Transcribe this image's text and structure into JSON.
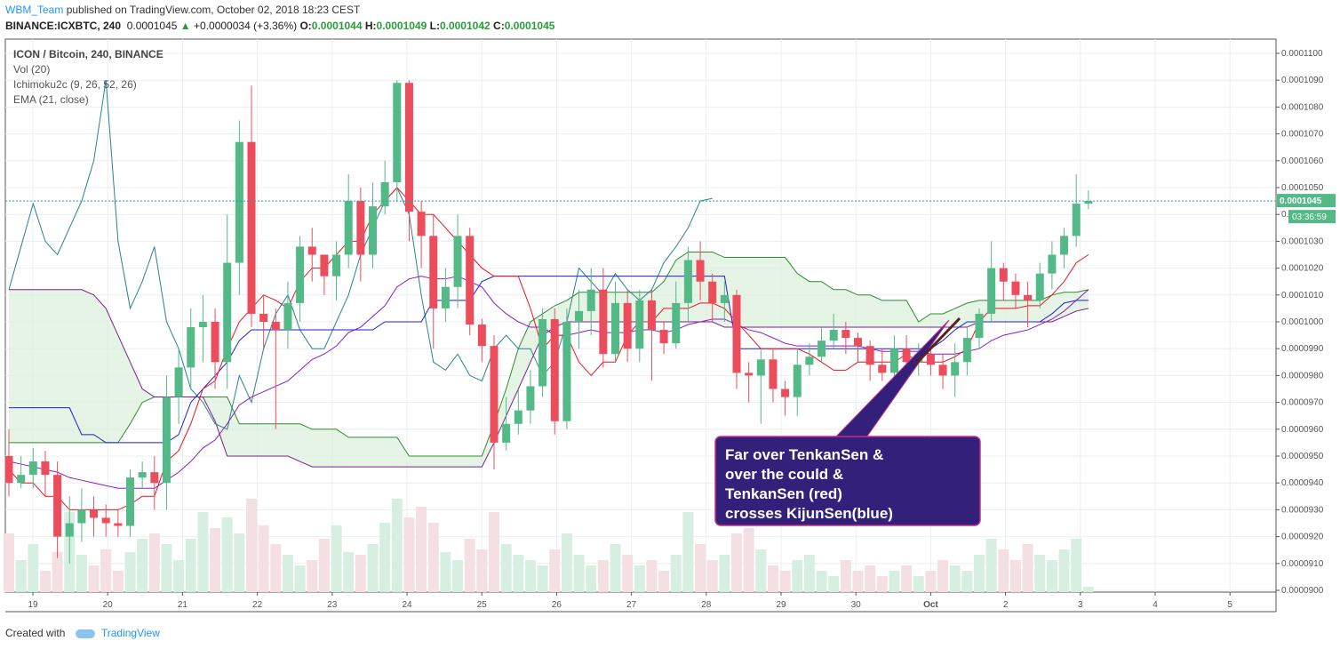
{
  "header": {
    "author": "WBM_Team",
    "published": "published on TradingView.com, October 02, 2018 18:23 CEST",
    "symbol": "BINANCE:ICXBTC, 240",
    "price": "0.0001045",
    "change": "+0.0000034 (+3.36%)",
    "o_label": "O:",
    "o_value": "0.0001044",
    "h_label": "H:",
    "h_value": "0.0001049",
    "l_label": "L:",
    "l_value": "0.0001042",
    "c_label": "C:",
    "c_value": "0.0001045"
  },
  "legend": {
    "title": "ICON / Bitcoin, 240, BINANCE",
    "vol": "Vol (20)",
    "ichimoku": "Ichimoku2c (9, 26, 52, 26)",
    "ema": "EMA (21, close)"
  },
  "callout": {
    "lines": [
      "Far over TenkanSen &",
      "over the could &",
      "TenkanSen (red)",
      "crosses KijunSen(blue)"
    ]
  },
  "price_tag": "0.0001045",
  "countdown": "03:36:59",
  "footer": {
    "created": "Created with",
    "brand": "TradingView"
  },
  "colors": {
    "up": "#53b987",
    "down": "#eb4d5c",
    "tenkan": "#e8151e",
    "kijun": "#1d1fd1",
    "chikou": "#26838e",
    "ema": "#8e1ac2",
    "kumo_fill": "#dcefdc",
    "kumo_border": "#2e8b2e",
    "callout_bg": "#33207a",
    "callout_border": "#c0308a"
  },
  "chart_data": {
    "type": "candlestick",
    "y_axis_ticks": [
      "0.0000900",
      "0.0000910",
      "0.0000920",
      "0.0000930",
      "0.0000940",
      "0.0000950",
      "0.0000960",
      "0.0000970",
      "0.0000980",
      "0.0000990",
      "0.0001000",
      "0.0001010",
      "0.0001020",
      "0.0001030",
      "0.0001040",
      "0.0001050",
      "0.0001060",
      "0.0001070",
      "0.0001080",
      "0.0001090",
      "0.0001100"
    ],
    "x_axis_ticks": [
      "19",
      "20",
      "21",
      "22",
      "23",
      "24",
      "25",
      "26",
      "27",
      "28",
      "29",
      "30",
      "Oct",
      "2",
      "3",
      "4",
      "5"
    ],
    "ylim": [
      9e-05,
      0.00011
    ],
    "grid": true,
    "candles": [
      [
        9.5e-05,
        9.4e-05,
        9.6e-05,
        9.35e-05
      ],
      [
        9.4e-05,
        9.43e-05,
        9.5e-05,
        9.38e-05
      ],
      [
        9.43e-05,
        9.48e-05,
        9.53e-05,
        9.38e-05
      ],
      [
        9.48e-05,
        9.43e-05,
        9.52e-05,
        9.35e-05
      ],
      [
        9.43e-05,
        9.2e-05,
        9.48e-05,
        9.12e-05
      ],
      [
        9.2e-05,
        9.25e-05,
        9.35e-05,
        9.1e-05
      ],
      [
        9.25e-05,
        9.3e-05,
        9.38e-05,
        9.18e-05
      ],
      [
        9.3e-05,
        9.27e-05,
        9.35e-05,
        9.2e-05
      ],
      [
        9.27e-05,
        9.25e-05,
        9.32e-05,
        9.2e-05
      ],
      [
        9.25e-05,
        9.24e-05,
        9.3e-05,
        9.2e-05
      ],
      [
        9.24e-05,
        9.42e-05,
        9.45e-05,
        9.2e-05
      ],
      [
        9.42e-05,
        9.44e-05,
        9.48e-05,
        9.38e-05
      ],
      [
        9.44e-05,
        9.4e-05,
        9.5e-05,
        9.3e-05
      ],
      [
        9.4e-05,
        9.72e-05,
        9.8e-05,
        9.3e-05
      ],
      [
        9.72e-05,
        9.83e-05,
        9.9e-05,
        9.62e-05
      ],
      [
        9.83e-05,
        9.98e-05,
        0.0001005,
        9.75e-05
      ],
      [
        9.98e-05,
        0.0001,
        0.000101,
        9.85e-05
      ],
      [
        0.0001,
        9.85e-05,
        0.0001005,
        9.75e-05
      ],
      [
        9.85e-05,
        0.0001022,
        0.000104,
        9.75e-05
      ],
      [
        0.0001022,
        0.0001067,
        0.0001075,
        0.000101
      ],
      [
        0.0001067,
        0.0001003,
        0.0001088,
        9.98e-05
      ],
      [
        0.0001003,
        0.0001,
        0.000101,
        9.9e-05
      ],
      [
        0.0001,
        9.97e-05,
        0.0001005,
        9.6e-05
      ],
      [
        9.97e-05,
        0.0001007,
        0.0001015,
        9.9e-05
      ],
      [
        0.0001007,
        0.0001028,
        0.0001032,
        0.0001
      ],
      [
        0.0001028,
        0.0001025,
        0.0001035,
        0.0001015
      ],
      [
        0.0001025,
        0.0001017,
        0.0001025,
        0.000101
      ],
      [
        0.0001017,
        0.0001025,
        0.000103,
        0.0001008
      ],
      [
        0.0001025,
        0.0001045,
        0.0001055,
        0.000102
      ],
      [
        0.0001045,
        0.0001025,
        0.000105,
        0.0001015
      ],
      [
        0.0001025,
        0.0001043,
        0.0001052,
        0.000102
      ],
      [
        0.0001043,
        0.0001052,
        0.000106,
        0.000104
      ],
      [
        0.0001052,
        0.0001089,
        0.000109,
        0.0001045
      ],
      [
        0.0001089,
        0.0001041,
        0.000109,
        0.000103
      ],
      [
        0.0001041,
        0.0001032,
        0.0001045,
        0.000102
      ],
      [
        0.0001032,
        0.0001005,
        0.000104,
        9.9e-05
      ],
      [
        0.0001005,
        0.0001013,
        0.000102,
        0.0001
      ],
      [
        0.0001013,
        0.0001032,
        0.000104,
        0.0001005
      ],
      [
        0.0001032,
        9.99e-05,
        0.0001035,
        9.95e-05
      ],
      [
        9.99e-05,
        9.91e-05,
        0.0001001,
        9.85e-05
      ],
      [
        9.91e-05,
        9.55e-05,
        9.95e-05,
        9.45e-05
      ],
      [
        9.55e-05,
        9.62e-05,
        9.72e-05,
        9.52e-05
      ],
      [
        9.62e-05,
        9.67e-05,
        9.75e-05,
        9.58e-05
      ],
      [
        9.67e-05,
        9.76e-05,
        9.82e-05,
        9.62e-05
      ],
      [
        9.76e-05,
        0.0001001,
        0.0001005,
        9.72e-05
      ],
      [
        0.0001001,
        9.63e-05,
        0.0001005,
        9.58e-05
      ],
      [
        9.63e-05,
        0.0001,
        0.0001005,
        9.6e-05
      ],
      [
        0.0001,
        0.0001004,
        0.0001012,
        9.9e-05
      ],
      [
        0.0001004,
        0.0001012,
        0.000102,
        9.95e-05
      ],
      [
        0.0001012,
        9.88e-05,
        0.000102,
        9.83e-05
      ],
      [
        9.88e-05,
        0.0001007,
        0.0001015,
        9.85e-05
      ],
      [
        0.0001007,
        9.9e-05,
        0.0001012,
        9.85e-05
      ],
      [
        9.9e-05,
        0.0001008,
        0.0001012,
        9.85e-05
      ],
      [
        0.0001008,
        9.97e-05,
        0.0001012,
        9.78e-05
      ],
      [
        9.97e-05,
        9.92e-05,
        0.0001,
        9.88e-05
      ],
      [
        9.92e-05,
        0.0001007,
        0.0001015,
        9.9e-05
      ],
      [
        0.0001007,
        0.0001023,
        0.0001028,
        0.0001
      ],
      [
        0.0001023,
        0.0001015,
        0.000103,
        0.0001008
      ],
      [
        0.0001015,
        0.0001007,
        0.0001018,
        0.0001
      ],
      [
        0.0001007,
        0.000101,
        0.0001015,
        0.0001
      ],
      [
        0.000101,
        9.81e-05,
        0.0001012,
        9.75e-05
      ],
      [
        9.81e-05,
        9.8e-05,
        9.85e-05,
        9.7e-05
      ],
      [
        9.8e-05,
        9.86e-05,
        9.9e-05,
        9.62e-05
      ],
      [
        9.86e-05,
        9.75e-05,
        9.9e-05,
        9.7e-05
      ],
      [
        9.75e-05,
        9.72e-05,
        9.78e-05,
        9.65e-05
      ],
      [
        9.72e-05,
        9.84e-05,
        9.9e-05,
        9.65e-05
      ],
      [
        9.84e-05,
        9.87e-05,
        9.92e-05,
        9.8e-05
      ],
      [
        9.87e-05,
        9.93e-05,
        9.98e-05,
        9.85e-05
      ],
      [
        9.93e-05,
        9.97e-05,
        0.0001003,
        9.9e-05
      ],
      [
        9.97e-05,
        9.94e-05,
        0.0001,
        9.88e-05
      ],
      [
        9.94e-05,
        9.91e-05,
        9.96e-05,
        9.85e-05
      ],
      [
        9.91e-05,
        9.84e-05,
        9.93e-05,
        9.78e-05
      ],
      [
        9.84e-05,
        9.81e-05,
        9.9e-05,
        9.78e-05
      ],
      [
        9.81e-05,
        9.9e-05,
        9.95e-05,
        9.78e-05
      ],
      [
        9.9e-05,
        9.85e-05,
        9.95e-05,
        9.8e-05
      ],
      [
        9.85e-05,
        9.88e-05,
        9.92e-05,
        9.8e-05
      ],
      [
        9.88e-05,
        9.84e-05,
        9.9e-05,
        9.8e-05
      ],
      [
        9.84e-05,
        9.8e-05,
        9.88e-05,
        9.75e-05
      ],
      [
        9.8e-05,
        9.85e-05,
        9.92e-05,
        9.72e-05
      ],
      [
        9.85e-05,
        9.94e-05,
        9.98e-05,
        9.8e-05
      ],
      [
        9.94e-05,
        0.0001003,
        0.0001005,
        9.9e-05
      ],
      [
        0.0001003,
        0.000102,
        0.000103,
        0.0001
      ],
      [
        0.000102,
        0.0001015,
        0.0001022,
        0.0001008
      ],
      [
        0.0001015,
        0.000101,
        0.0001018,
        0.0001005
      ],
      [
        0.000101,
        0.0001008,
        0.0001015,
        9.98e-05
      ],
      [
        0.0001008,
        0.0001018,
        0.0001022,
        0.0001005
      ],
      [
        0.0001018,
        0.0001025,
        0.000103,
        0.0001012
      ],
      [
        0.0001025,
        0.0001032,
        0.0001035,
        0.000102
      ],
      [
        0.0001032,
        0.0001044,
        0.0001055,
        0.0001028
      ],
      [
        0.0001044,
        0.0001045,
        0.0001049,
        0.0001042
      ]
    ],
    "volumes": [
      22,
      12,
      18,
      8,
      15,
      30,
      14,
      10,
      16,
      8,
      15,
      20,
      22,
      18,
      12,
      20,
      30,
      24,
      28,
      22,
      35,
      25,
      18,
      14,
      10,
      12,
      20,
      25,
      15,
      14,
      18,
      26,
      35,
      28,
      32,
      26,
      15,
      12,
      20,
      16,
      30,
      18,
      14,
      12,
      10,
      16,
      22,
      14,
      10,
      12,
      18,
      14,
      10,
      12,
      8,
      14,
      30,
      18,
      12,
      14,
      22,
      24,
      16,
      10,
      8,
      12,
      14,
      8,
      6,
      12,
      8,
      10,
      6,
      8,
      10,
      6,
      8,
      12,
      10,
      8,
      14,
      20,
      16,
      12,
      18,
      14,
      12,
      16,
      20,
      2
    ],
    "tenkan": [
      9.45e-05,
      9.4e-05,
      9.4e-05,
      9.35e-05,
      9.35e-05,
      9.3e-05,
      9.3e-05,
      9.3e-05,
      9.3e-05,
      9.3e-05,
      9.32e-05,
      9.35e-05,
      9.35e-05,
      9.48e-05,
      9.52e-05,
      9.62e-05,
      9.75e-05,
      9.78e-05,
      9.9e-05,
      0.0001,
      0.0001005,
      0.000101,
      0.0001008,
      0.0001005,
      0.0001015,
      0.000102,
      0.000102,
      0.0001025,
      0.000103,
      0.000103,
      0.000104,
      0.0001045,
      0.000105,
      0.0001045,
      0.000104,
      0.000104,
      0.0001035,
      0.000103,
      0.0001025,
      0.000102,
      0.0001017,
      0.0001017,
      0.0001017,
      0.0001005,
      9.9e-05,
      9.95e-05,
      9.95e-05,
      9.85e-05,
      9.8e-05,
      9.85e-05,
      9.85e-05,
      9.95e-05,
      0.0001,
      0.0001,
      0.0001005,
      0.0001005,
      0.0001005,
      0.0001007,
      0.0001007,
      0.0001005,
      0.0001,
      9.95e-05,
      9.9e-05,
      9.9e-05,
      9.9e-05,
      9.9e-05,
      9.88e-05,
      9.85e-05,
      9.82e-05,
      9.82e-05,
      9.85e-05,
      9.85e-05,
      9.85e-05,
      9.85e-05,
      9.88e-05,
      9.85e-05,
      9.85e-05,
      9.85e-05,
      9.87e-05,
      9.9e-05,
      0.0001,
      0.0001005,
      0.0001005,
      0.0001005,
      0.0001006,
      0.0001006,
      0.000101,
      0.0001015,
      0.0001022,
      0.0001025
    ],
    "kijun": [
      9.68e-05,
      9.68e-05,
      9.68e-05,
      9.68e-05,
      9.68e-05,
      9.68e-05,
      9.58e-05,
      9.58e-05,
      9.55e-05,
      9.55e-05,
      9.55e-05,
      9.55e-05,
      9.55e-05,
      9.55e-05,
      9.58e-05,
      9.7e-05,
      9.75e-05,
      9.8e-05,
      9.85e-05,
      9.93e-05,
      9.97e-05,
      9.97e-05,
      9.97e-05,
      9.97e-05,
      9.97e-05,
      9.97e-05,
      9.97e-05,
      9.97e-05,
      9.97e-05,
      9.97e-05,
      9.97e-05,
      0.0001,
      0.0001,
      0.0001,
      0.0001,
      0.0001008,
      0.0001008,
      0.0001008,
      0.0001008,
      0.0001015,
      0.0001017,
      0.0001017,
      0.0001017,
      0.0001017,
      0.0001017,
      0.0001017,
      0.0001017,
      0.0001017,
      0.0001017,
      0.0001017,
      0.0001017,
      0.0001017,
      0.0001017,
      0.0001017,
      0.0001017,
      0.0001017,
      0.0001017,
      0.0001017,
      0.0001017,
      0.0001017,
      9.9e-05,
      9.9e-05,
      9.9e-05,
      9.9e-05,
      9.9e-05,
      9.9e-05,
      9.9e-05,
      9.9e-05,
      9.9e-05,
      9.9e-05,
      9.9e-05,
      9.9e-05,
      9.9e-05,
      9.9e-05,
      9.9e-05,
      9.9e-05,
      9.9e-05,
      9.93e-05,
      9.97e-05,
      0.0001,
      0.0001,
      0.0001,
      0.0001,
      0.0001,
      0.0001,
      0.0001,
      0.0001003,
      0.0001007,
      0.0001008,
      0.0001008
    ],
    "chikou": [
      0.0001012,
      0.0001028,
      0.0001044,
      0.000103,
      0.0001025,
      0.0001035,
      0.0001045,
      0.000106,
      0.000109,
      0.000103,
      0.0001005,
      0.0001015,
      0.0001028,
      0.0001,
      9.9e-05,
      9.75e-05,
      9.7e-05,
      9.62e-05,
      9.6e-05,
      9.8e-05,
      9.7e-05,
      9.9e-05,
      0.0001003,
      0.000101,
      9.97e-05,
      9.9e-05,
      9.9e-05,
      0.0001,
      0.000101,
      0.0001025,
      0.0001035,
      0.0001045,
      0.000105,
      0.000104,
      0.000101,
      9.85e-05,
      9.82e-05,
      9.88e-05,
      9.8e-05,
      9.78e-05,
      9.9e-05,
      9.95e-05,
      9.9e-05,
      9.9e-05,
      9.8e-05,
      9.85e-05,
      0.0001,
      0.000102,
      0.0001015,
      0.000101,
      0.0001018,
      0.0001012,
      0.0001008,
      0.0001012,
      0.0001022,
      0.0001028,
      0.0001035,
      0.0001045,
      0.0001046
    ],
    "ema": [
      9.48e-05,
      9.47e-05,
      9.46e-05,
      9.45e-05,
      9.44e-05,
      9.42e-05,
      9.41e-05,
      9.4e-05,
      9.39e-05,
      9.38e-05,
      9.38e-05,
      9.38e-05,
      9.38e-05,
      9.41e-05,
      9.44e-05,
      9.48e-05,
      9.53e-05,
      9.56e-05,
      9.62e-05,
      9.69e-05,
      9.72e-05,
      9.74e-05,
      9.76e-05,
      9.78e-05,
      9.82e-05,
      9.86e-05,
      9.88e-05,
      9.91e-05,
      9.96e-05,
      9.98e-05,
      0.0001002,
      0.0001006,
      0.0001013,
      0.0001016,
      0.0001017,
      0.0001016,
      0.0001016,
      0.0001017,
      0.0001015,
      0.0001013,
      0.0001007,
      0.0001003,
      0.0001,
      9.98e-05,
      9.98e-05,
      9.95e-05,
      9.95e-05,
      9.96e-05,
      9.97e-05,
      9.96e-05,
      9.96e-05,
      9.96e-05,
      9.97e-05,
      9.97e-05,
      9.96e-05,
      9.97e-05,
      9.99e-05,
      0.0001,
      0.0001001,
      0.0001001,
      9.99e-05,
      9.97e-05,
      9.96e-05,
      9.94e-05,
      9.92e-05,
      9.91e-05,
      9.91e-05,
      9.91e-05,
      9.91e-05,
      9.91e-05,
      9.91e-05,
      9.9e-05,
      9.89e-05,
      9.89e-05,
      9.89e-05,
      9.89e-05,
      9.88e-05,
      9.88e-05,
      9.88e-05,
      9.89e-05,
      9.9e-05,
      9.93e-05,
      9.95e-05,
      9.96e-05,
      9.97e-05,
      9.99e-05,
      0.0001001,
      0.0001004,
      0.0001008,
      0.0001012
    ],
    "kumo_a": [
      9.55e-05,
      9.55e-05,
      9.55e-05,
      9.55e-05,
      9.55e-05,
      9.55e-05,
      9.55e-05,
      9.55e-05,
      9.55e-05,
      9.55e-05,
      9.62e-05,
      9.7e-05,
      9.72e-05,
      9.72e-05,
      9.72e-05,
      9.72e-05,
      9.72e-05,
      9.72e-05,
      9.72e-05,
      9.62e-05,
      9.62e-05,
      9.62e-05,
      9.62e-05,
      9.62e-05,
      9.62e-05,
      9.6e-05,
      9.6e-05,
      9.6e-05,
      9.57e-05,
      9.57e-05,
      9.57e-05,
      9.57e-05,
      9.57e-05,
      9.5e-05,
      9.5e-05,
      9.5e-05,
      9.5e-05,
      9.5e-05,
      9.5e-05,
      9.5e-05,
      9.62e-05,
      9.75e-05,
      9.9e-05,
      0.0001,
      0.0001003,
      0.0001006,
      0.0001008,
      0.0001011,
      0.0001011,
      0.0001011,
      0.0001011,
      0.0001011,
      0.0001011,
      0.0001011,
      0.0001015,
      0.0001023,
      0.0001026,
      0.0001026,
      0.0001026,
      0.0001024,
      0.0001024,
      0.0001024,
      0.0001024,
      0.0001024,
      0.0001024,
      0.0001018,
      0.0001015,
      0.0001015,
      0.0001012,
      0.0001012,
      0.000101,
      0.000101,
      0.0001008,
      0.0001008,
      0.0001008,
      0.0001,
      0.0001003,
      0.0001003,
      0.0001005,
      0.0001007,
      0.0001008,
      0.0001008,
      0.0001008,
      0.0001008,
      0.0001008,
      0.0001008,
      0.000101,
      0.0001011,
      0.0001011,
      0.0001012
    ],
    "kumo_b": [
      0.0001012,
      0.0001012,
      0.0001012,
      0.0001012,
      0.0001012,
      0.0001012,
      0.0001012,
      0.000101,
      0.0001005,
      9.95e-05,
      9.85e-05,
      9.75e-05,
      9.72e-05,
      9.72e-05,
      9.72e-05,
      9.72e-05,
      9.72e-05,
      9.63e-05,
      9.5e-05,
      9.5e-05,
      9.5e-05,
      9.5e-05,
      9.5e-05,
      9.5e-05,
      9.48e-05,
      9.46e-05,
      9.46e-05,
      9.46e-05,
      9.46e-05,
      9.46e-05,
      9.46e-05,
      9.46e-05,
      9.46e-05,
      9.46e-05,
      9.46e-05,
      9.46e-05,
      9.46e-05,
      9.46e-05,
      9.46e-05,
      9.46e-05,
      9.55e-05,
      9.65e-05,
      9.75e-05,
      9.85e-05,
      9.95e-05,
      9.98e-05,
      0.0001,
      0.0001,
      0.0001,
      0.0001,
      0.0001,
      0.0001,
      0.0001,
      0.0001,
      0.0001,
      0.0001,
      0.0001,
      0.0001,
      0.0001,
      9.98e-05,
      9.98e-05,
      9.98e-05,
      9.98e-05,
      9.98e-05,
      9.98e-05,
      9.98e-05,
      9.98e-05,
      9.98e-05,
      9.98e-05,
      9.98e-05,
      9.98e-05,
      9.98e-05,
      9.98e-05,
      9.98e-05,
      9.98e-05,
      9.98e-05,
      9.98e-05,
      9.98e-05,
      9.98e-05,
      9.98e-05,
      0.0001,
      0.0001,
      0.0001,
      0.0001,
      0.0001,
      0.0001,
      0.0001,
      0.0001002,
      0.0001004,
      0.0001005
    ]
  }
}
